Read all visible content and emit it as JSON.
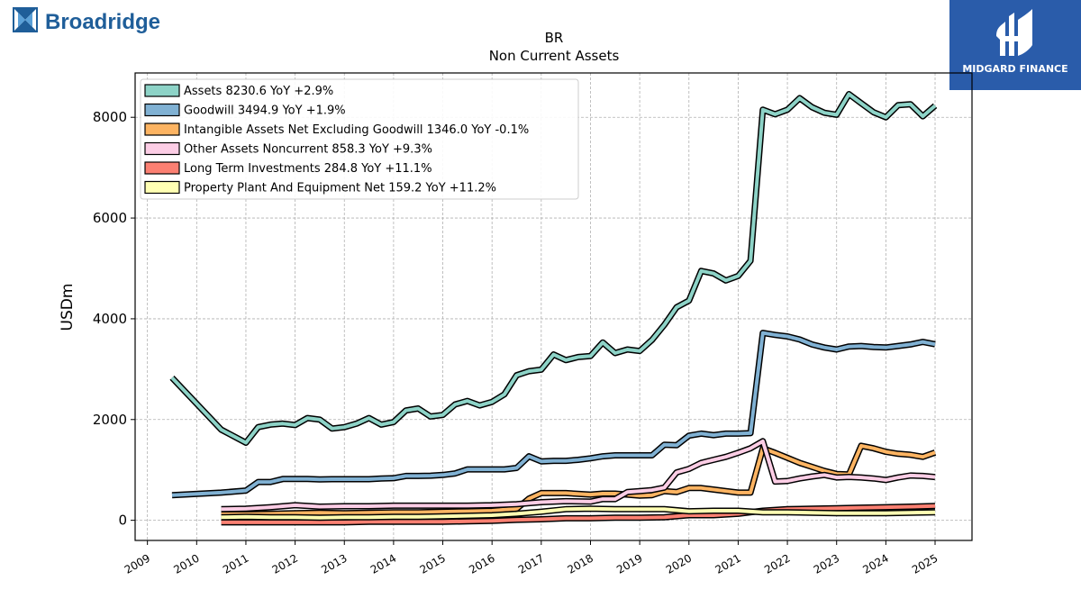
{
  "branding": {
    "left_logo_text": "Broadridge",
    "right_logo_text": "MIDGARD FINANCE",
    "left_logo_color": "#1f5e99",
    "right_logo_bg": "#2a5caa"
  },
  "chart_data": {
    "type": "line",
    "title": "BR",
    "subtitle": "Non Current  Assets",
    "xlabel": "",
    "ylabel": "USDm",
    "xlim": [
      2008.75,
      2025.75
    ],
    "ylim": [
      -400,
      8880
    ],
    "yticks": [
      0,
      2000,
      4000,
      6000,
      8000
    ],
    "xticks": [
      2009,
      2010,
      2011,
      2012,
      2013,
      2014,
      2015,
      2016,
      2017,
      2018,
      2019,
      2020,
      2021,
      2022,
      2023,
      2024,
      2025
    ],
    "xtick_labels": [
      "2009",
      "2010",
      "2011",
      "2012",
      "2013",
      "2014",
      "2015",
      "2016",
      "2017",
      "2018",
      "2019",
      "2020",
      "2021",
      "2022",
      "2023",
      "2024",
      "2025"
    ],
    "grid": true,
    "legend_position": "top-left",
    "series": [
      {
        "name": "Assets  8230.6 YoY +2.9%",
        "color": "#8dd3c7",
        "x": [
          2009.5,
          2010.5,
          2011.0,
          2011.25,
          2011.5,
          2011.75,
          2012.0,
          2012.25,
          2012.5,
          2012.75,
          2013.0,
          2013.25,
          2013.5,
          2013.75,
          2014.0,
          2014.25,
          2014.5,
          2014.75,
          2015.0,
          2015.25,
          2015.5,
          2015.75,
          2016.0,
          2016.25,
          2016.5,
          2016.75,
          2017.0,
          2017.25,
          2017.5,
          2017.75,
          2018.0,
          2018.25,
          2018.5,
          2018.75,
          2019.0,
          2019.25,
          2019.5,
          2019.75,
          2020.0,
          2020.25,
          2020.5,
          2020.75,
          2021.0,
          2021.25,
          2021.5,
          2021.75,
          2022.0,
          2022.25,
          2022.5,
          2022.75,
          2023.0,
          2023.25,
          2023.5,
          2023.75,
          2024.0,
          2024.25,
          2024.5,
          2024.75,
          2025.0
        ],
        "y": [
          2830,
          1800,
          1540,
          1850,
          1900,
          1920,
          1890,
          2030,
          2000,
          1820,
          1850,
          1920,
          2030,
          1900,
          1950,
          2180,
          2220,
          2060,
          2090,
          2300,
          2370,
          2280,
          2350,
          2500,
          2880,
          2960,
          2990,
          3290,
          3180,
          3240,
          3260,
          3530,
          3320,
          3390,
          3360,
          3580,
          3880,
          4230,
          4360,
          4950,
          4900,
          4760,
          4850,
          5150,
          8150,
          8060,
          8150,
          8380,
          8200,
          8090,
          8050,
          8460,
          8280,
          8100,
          8000,
          8240,
          8260,
          8020,
          8230
        ]
      },
      {
        "name": "Goodwill  3494.9 YoY +1.9%",
        "color": "#80b1d3",
        "x": [
          2009.5,
          2010.5,
          2011.0,
          2011.25,
          2011.5,
          2011.75,
          2012.0,
          2012.25,
          2012.5,
          2012.75,
          2013.0,
          2013.25,
          2013.5,
          2013.75,
          2014.0,
          2014.25,
          2014.5,
          2014.75,
          2015.0,
          2015.25,
          2015.5,
          2015.75,
          2016.0,
          2016.25,
          2016.5,
          2016.75,
          2017.0,
          2017.25,
          2017.5,
          2017.75,
          2018.0,
          2018.25,
          2018.5,
          2018.75,
          2019.0,
          2019.25,
          2019.5,
          2019.75,
          2020.0,
          2020.25,
          2020.5,
          2020.75,
          2021.0,
          2021.25,
          2021.5,
          2021.75,
          2022.0,
          2022.25,
          2022.5,
          2022.75,
          2023.0,
          2023.25,
          2023.5,
          2023.75,
          2024.0,
          2024.25,
          2024.5,
          2024.75,
          2025.0
        ],
        "y": [
          500,
          550,
          590,
          760,
          760,
          820,
          820,
          820,
          810,
          815,
          815,
          815,
          815,
          830,
          835,
          880,
          880,
          885,
          900,
          930,
          1010,
          1010,
          1010,
          1010,
          1040,
          1270,
          1170,
          1180,
          1180,
          1200,
          1230,
          1270,
          1290,
          1290,
          1290,
          1290,
          1500,
          1490,
          1680,
          1720,
          1690,
          1720,
          1720,
          1730,
          3720,
          3680,
          3650,
          3590,
          3490,
          3430,
          3390,
          3450,
          3460,
          3440,
          3430,
          3460,
          3490,
          3540,
          3495
        ]
      },
      {
        "name": "Intangible Assets Net Excluding Goodwill  1346.0 YoY -0.1%",
        "color": "#fdb462",
        "x": [
          2010.5,
          2011.0,
          2011.5,
          2012.0,
          2012.5,
          2013.0,
          2013.5,
          2014.0,
          2014.5,
          2015.0,
          2015.5,
          2016.0,
          2016.5,
          2016.75,
          2017.0,
          2017.5,
          2018.0,
          2018.25,
          2018.5,
          2018.75,
          2019.0,
          2019.25,
          2019.5,
          2019.75,
          2020.0,
          2020.25,
          2020.5,
          2020.75,
          2021.0,
          2021.25,
          2021.5,
          2021.75,
          2022.0,
          2022.25,
          2022.5,
          2022.75,
          2023.0,
          2023.25,
          2023.5,
          2023.75,
          2024.0,
          2024.25,
          2024.5,
          2024.75,
          2025.0
        ],
        "y": [
          120,
          120,
          130,
          140,
          150,
          140,
          150,
          160,
          160,
          170,
          180,
          190,
          230,
          430,
          540,
          540,
          510,
          530,
          530,
          510,
          490,
          500,
          580,
          560,
          640,
          640,
          610,
          580,
          550,
          550,
          1430,
          1340,
          1240,
          1140,
          1060,
          980,
          920,
          910,
          1480,
          1430,
          1360,
          1320,
          1300,
          1260,
          1346
        ]
      },
      {
        "name": "Other Assets Noncurrent  858.3 YoY +9.3%",
        "color": "#fccde5",
        "x": [
          2010.5,
          2011.0,
          2011.5,
          2012.0,
          2012.5,
          2013.0,
          2013.5,
          2014.0,
          2014.5,
          2015.0,
          2015.5,
          2016.0,
          2016.5,
          2017.0,
          2017.5,
          2018.0,
          2018.25,
          2018.5,
          2018.75,
          2019.0,
          2019.25,
          2019.5,
          2019.75,
          2020.0,
          2020.25,
          2020.5,
          2020.75,
          2021.0,
          2021.25,
          2021.5,
          2021.75,
          2022.0,
          2022.25,
          2022.5,
          2022.75,
          2023.0,
          2023.25,
          2023.5,
          2023.75,
          2024.0,
          2024.25,
          2024.5,
          2024.75,
          2025.0
        ],
        "y": [
          220,
          230,
          260,
          300,
          270,
          280,
          280,
          290,
          290,
          290,
          290,
          300,
          320,
          360,
          380,
          370,
          420,
          420,
          560,
          580,
          600,
          650,
          950,
          1020,
          1140,
          1200,
          1260,
          1340,
          1430,
          1570,
          770,
          780,
          830,
          870,
          900,
          850,
          860,
          850,
          830,
          800,
          850,
          890,
          880,
          858
        ]
      },
      {
        "name": "Long Term Investments  284.8 YoY +11.1%",
        "color": "#fb8072",
        "x": [
          2010.5,
          2011.0,
          2011.5,
          2012.0,
          2012.5,
          2013.0,
          2013.5,
          2014.0,
          2014.5,
          2015.0,
          2015.5,
          2016.0,
          2016.5,
          2017.0,
          2017.5,
          2018.0,
          2018.5,
          2019.0,
          2019.5,
          2020.0,
          2020.5,
          2021.0,
          2021.5,
          2022.0,
          2022.5,
          2023.0,
          2023.5,
          2024.0,
          2024.5,
          2025.0
        ],
        "y": [
          -40,
          -40,
          -40,
          -40,
          -40,
          -40,
          -30,
          -30,
          -30,
          -30,
          -20,
          -10,
          10,
          20,
          40,
          40,
          50,
          50,
          60,
          100,
          100,
          130,
          190,
          220,
          230,
          240,
          250,
          260,
          270,
          285
        ]
      },
      {
        "name": "Property Plant And Equipment Net  159.2 YoY +11.2%",
        "color": "#ffffb3",
        "x": [
          2010.5,
          2011.0,
          2011.5,
          2012.0,
          2012.5,
          2013.0,
          2013.5,
          2014.0,
          2014.5,
          2015.0,
          2015.5,
          2016.0,
          2016.5,
          2017.0,
          2017.5,
          2018.0,
          2018.5,
          2019.0,
          2019.5,
          2020.0,
          2020.5,
          2021.0,
          2021.5,
          2022.0,
          2022.5,
          2023.0,
          2023.5,
          2024.0,
          2024.5,
          2025.0
        ],
        "y": [
          60,
          70,
          60,
          60,
          50,
          60,
          60,
          70,
          70,
          80,
          90,
          100,
          130,
          170,
          220,
          230,
          220,
          220,
          220,
          180,
          190,
          190,
          160,
          160,
          150,
          140,
          140,
          140,
          150,
          159
        ]
      }
    ]
  }
}
